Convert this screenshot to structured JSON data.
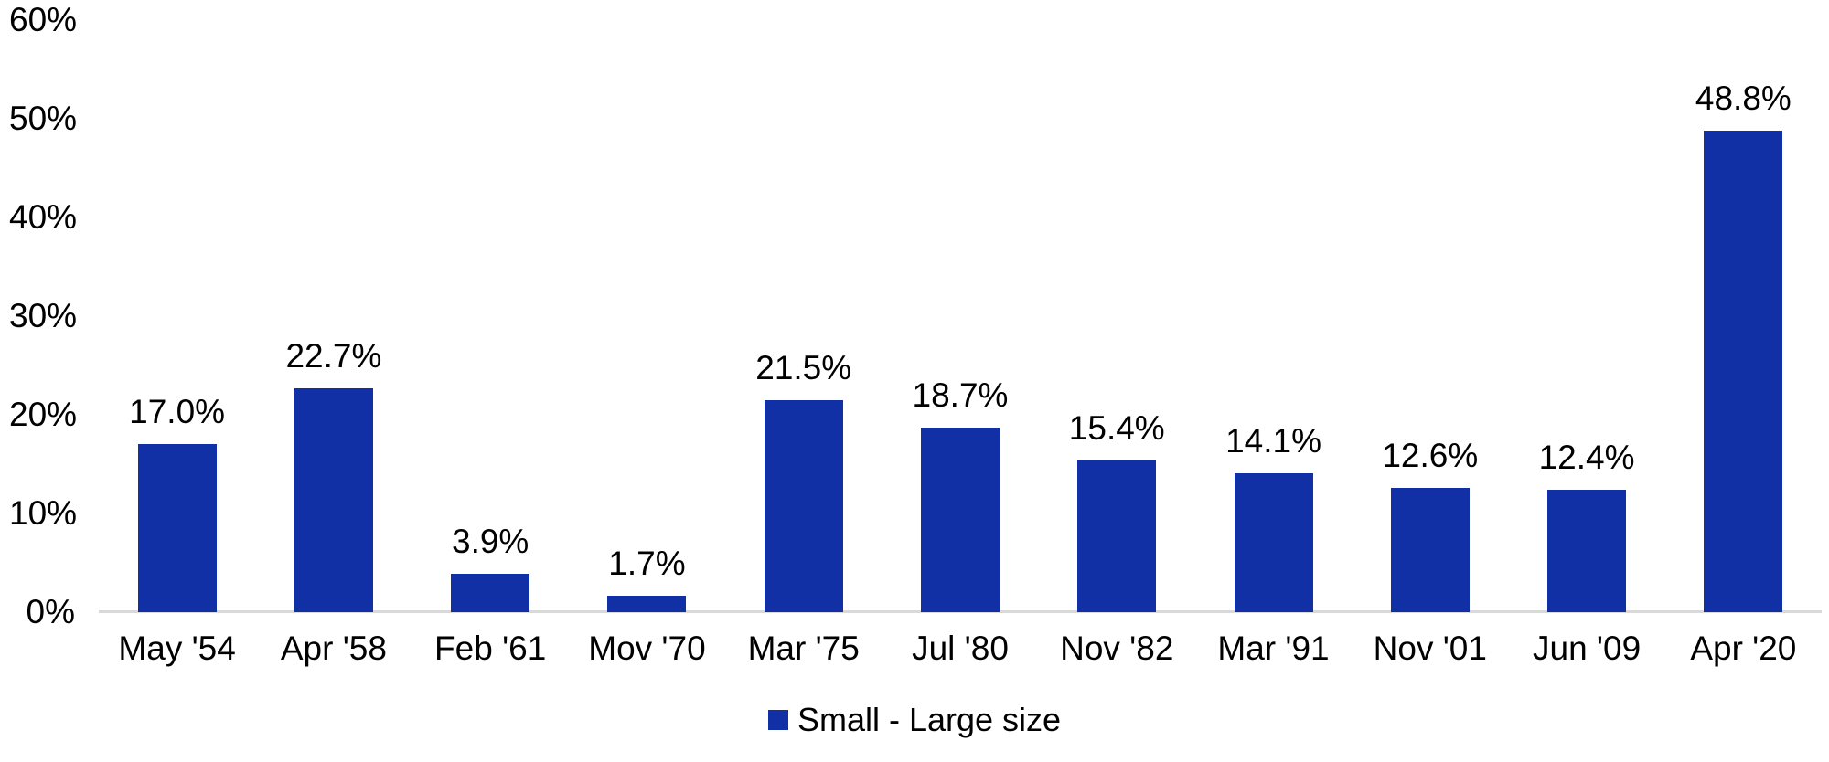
{
  "colors": {
    "bar": "#1230a5",
    "axis_line": "#d9d9d9",
    "text": "#000000",
    "background": "#ffffff"
  },
  "chart_data": {
    "type": "bar",
    "title": "",
    "xlabel": "",
    "ylabel": "",
    "categories": [
      "May '54",
      "Apr '58",
      "Feb '61",
      "Mov '70",
      "Mar '75",
      "Jul '80",
      "Nov '82",
      "Mar '91",
      "Nov '01",
      "Jun '09",
      "Apr '20"
    ],
    "values": [
      17.0,
      22.7,
      3.9,
      1.7,
      21.5,
      18.7,
      15.4,
      14.1,
      12.6,
      12.4,
      48.8
    ],
    "data_labels": [
      "17.0%",
      "22.7%",
      "3.9%",
      "1.7%",
      "21.5%",
      "18.7%",
      "15.4%",
      "14.1%",
      "12.6%",
      "12.4%",
      "48.8%"
    ],
    "ylim": [
      0,
      60
    ],
    "y_ticks": [
      {
        "value": 0,
        "label": "0%"
      },
      {
        "value": 10,
        "label": "10%"
      },
      {
        "value": 20,
        "label": "20%"
      },
      {
        "value": 30,
        "label": "30%"
      },
      {
        "value": 40,
        "label": "40%"
      },
      {
        "value": 50,
        "label": "50%"
      },
      {
        "value": 60,
        "label": "60%"
      }
    ],
    "grid": false,
    "legend": {
      "position": "bottom",
      "entries": [
        {
          "label": "Small - Large size",
          "color": "#1230a5",
          "marker": "square"
        }
      ]
    }
  }
}
